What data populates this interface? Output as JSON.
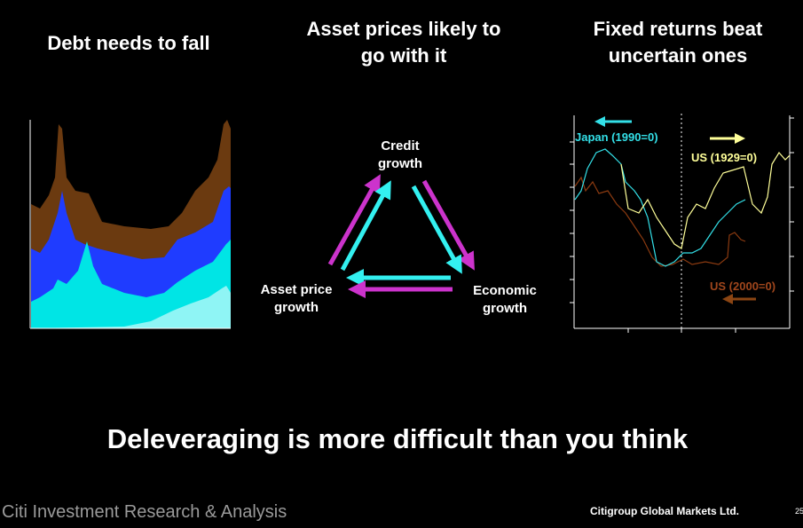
{
  "slide": {
    "panels": [
      {
        "title": [
          "Debt needs to fall"
        ]
      },
      {
        "title": [
          "Asset prices likely to",
          "go with it"
        ]
      },
      {
        "title": [
          "Fixed returns beat",
          "uncertain ones"
        ]
      }
    ],
    "diagram": {
      "nodes": [
        {
          "label": [
            "Credit",
            "growth"
          ]
        },
        {
          "label": [
            "Asset price",
            "growth"
          ]
        },
        {
          "label": [
            "Economic",
            "growth"
          ]
        }
      ]
    },
    "legend": [
      "Japan (1990=0)",
      "US (1929=0)",
      "US (2000=0)"
    ],
    "headline": "Deleveraging is more difficult than you think",
    "footer": {
      "left": "Citi Investment Research & Analysis",
      "right": "Citigroup Global Markets Ltd.",
      "page": "25"
    }
  }
}
